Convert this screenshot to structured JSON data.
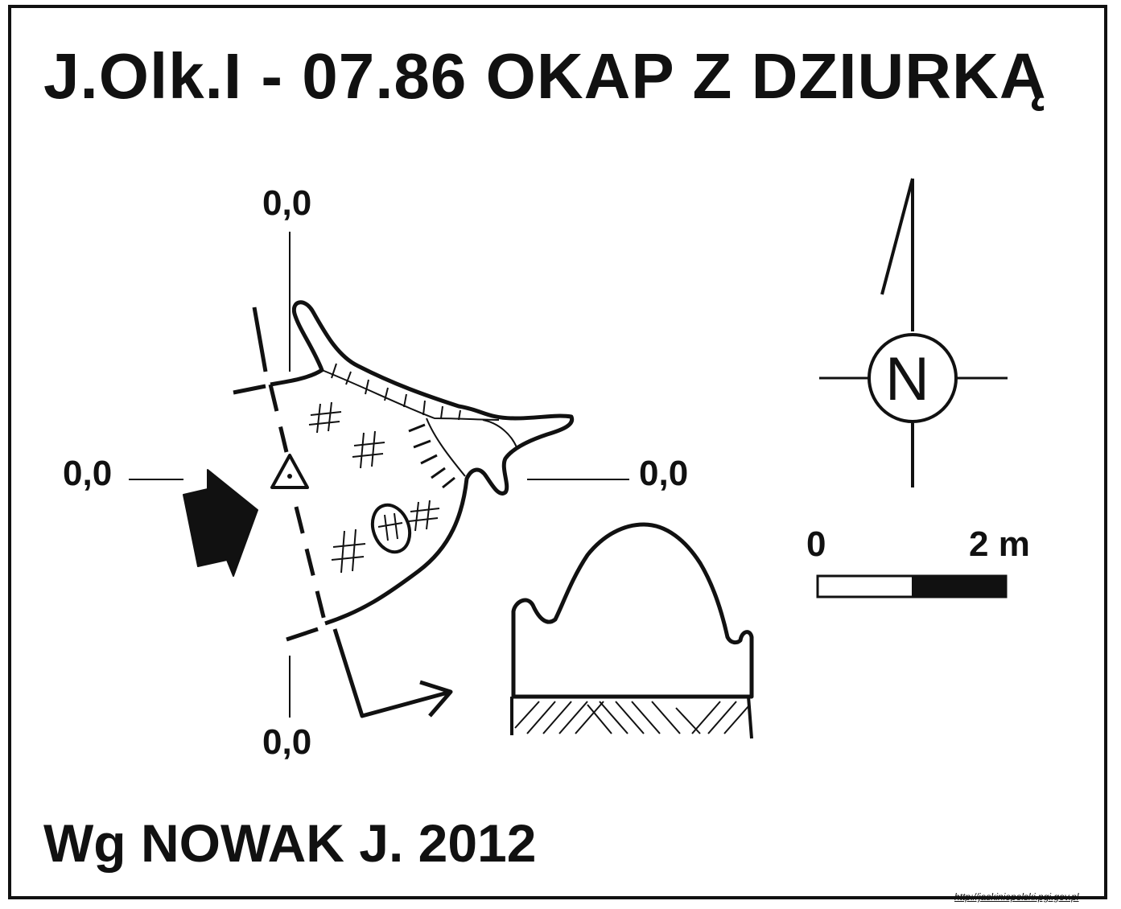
{
  "header": {
    "title": "J.Olk.I - 07.86  OKAP Z DZIURKĄ"
  },
  "footer": {
    "author": "Wg NOWAK J. 2012",
    "url": "http://jaskiniepolski.pgi.gov.pl"
  },
  "plan": {
    "section_labels": {
      "top": "0,0",
      "left": "0,0",
      "right": "0,0",
      "bottom": "0,0"
    }
  },
  "compass": {
    "letter": "N"
  },
  "scale": {
    "start_label": "0",
    "end_label": "2 m"
  },
  "colors": {
    "ink": "#111111",
    "background": "#ffffff"
  },
  "icons": [
    "entrance-arrow-icon",
    "survey-point-triangle-icon",
    "north-arrow-icon",
    "profile-view-arrow-icon"
  ]
}
